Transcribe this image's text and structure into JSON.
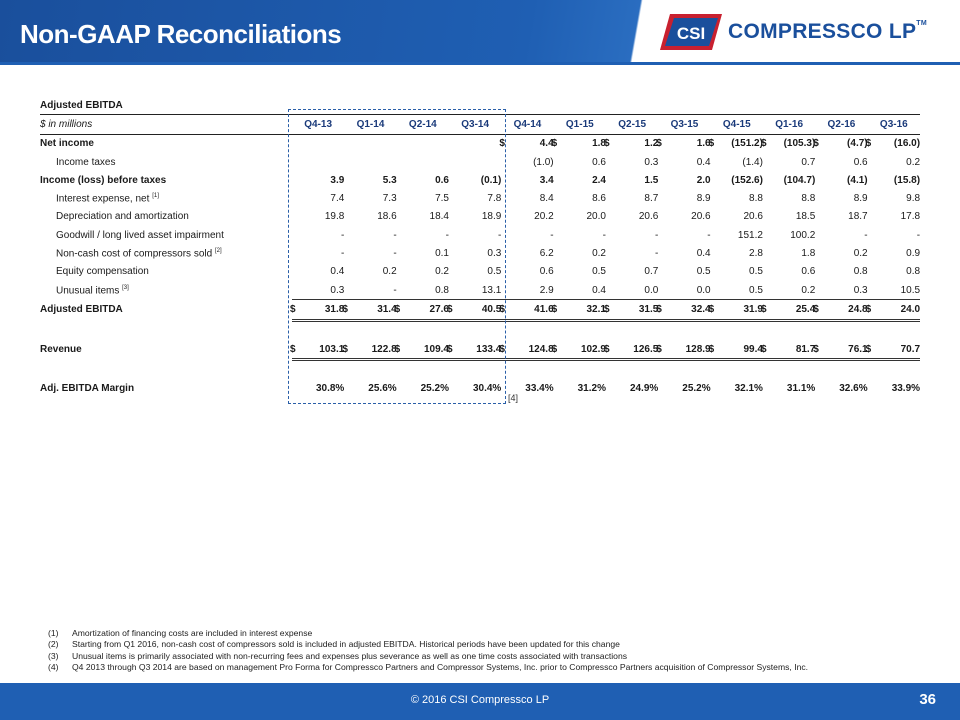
{
  "header": {
    "title": "Non-GAAP Reconciliations",
    "logo_badge": "CSI",
    "logo_text": "COMPRESSCO LP",
    "logo_tm": "TM",
    "colors": {
      "brand_blue": "#1f5fb3",
      "dark_blue": "#1a4f9c",
      "logo_red": "#c8202f"
    }
  },
  "table": {
    "section_title": "Adjusted EBITDA",
    "units_label": "$ in millions",
    "columns": [
      "Q4-13",
      "Q1-14",
      "Q2-14",
      "Q3-14",
      "Q4-14",
      "Q1-15",
      "Q2-15",
      "Q3-15",
      "Q4-15",
      "Q1-16",
      "Q2-16",
      "Q3-16"
    ],
    "rows": [
      {
        "label": "Net income",
        "sup": "",
        "bold": true,
        "indent": false,
        "dollar": true,
        "values": [
          "",
          "",
          "",
          "",
          "4.4",
          "1.8",
          "1.2",
          "1.6",
          "(151.2)",
          "(105.3)",
          "(4.7)",
          "(16.0)"
        ]
      },
      {
        "label": "Income taxes",
        "sup": "",
        "bold": false,
        "indent": true,
        "dollar": false,
        "values": [
          "",
          "",
          "",
          "",
          "(1.0)",
          "0.6",
          "0.3",
          "0.4",
          "(1.4)",
          "0.7",
          "0.6",
          "0.2"
        ]
      },
      {
        "label": "Income (loss) before taxes",
        "sup": "",
        "bold": true,
        "indent": false,
        "dollar": false,
        "values": [
          "3.9",
          "5.3",
          "0.6",
          "(0.1)",
          "3.4",
          "2.4",
          "1.5",
          "2.0",
          "(152.6)",
          "(104.7)",
          "(4.1)",
          "(15.8)"
        ]
      },
      {
        "label": "Interest expense, net",
        "sup": "[1]",
        "bold": false,
        "indent": true,
        "dollar": false,
        "values": [
          "7.4",
          "7.3",
          "7.5",
          "7.8",
          "8.4",
          "8.6",
          "8.7",
          "8.9",
          "8.8",
          "8.8",
          "8.9",
          "9.8"
        ]
      },
      {
        "label": "Depreciation and amortization",
        "sup": "",
        "bold": false,
        "indent": true,
        "dollar": false,
        "values": [
          "19.8",
          "18.6",
          "18.4",
          "18.9",
          "20.2",
          "20.0",
          "20.6",
          "20.6",
          "20.6",
          "18.5",
          "18.7",
          "17.8"
        ]
      },
      {
        "label": "Goodwill / long lived asset impairment",
        "sup": "",
        "bold": false,
        "indent": true,
        "dollar": false,
        "values": [
          "-",
          "-",
          "-",
          "-",
          "-",
          "-",
          "-",
          "-",
          "151.2",
          "100.2",
          "-",
          "-"
        ]
      },
      {
        "label": "Non-cash cost of compressors sold",
        "sup": "[2]",
        "bold": false,
        "indent": true,
        "dollar": false,
        "values": [
          "-",
          "-",
          "0.1",
          "0.3",
          "6.2",
          "0.2",
          "-",
          "0.4",
          "2.8",
          "1.8",
          "0.2",
          "0.9"
        ]
      },
      {
        "label": "Equity compensation",
        "sup": "",
        "bold": false,
        "indent": true,
        "dollar": false,
        "values": [
          "0.4",
          "0.2",
          "0.2",
          "0.5",
          "0.6",
          "0.5",
          "0.7",
          "0.5",
          "0.5",
          "0.6",
          "0.8",
          "0.8"
        ]
      },
      {
        "label": "Unusual items",
        "sup": "[3]",
        "bold": false,
        "indent": true,
        "dollar": false,
        "values": [
          "0.3",
          "-",
          "0.8",
          "13.1",
          "2.9",
          "0.4",
          "0.0",
          "0.0",
          "0.5",
          "0.2",
          "0.3",
          "10.5"
        ]
      },
      {
        "label": "Adjusted EBITDA",
        "sup": "",
        "bold": true,
        "indent": false,
        "dollar": true,
        "values": [
          "31.8",
          "31.4",
          "27.6",
          "40.5",
          "41.6",
          "32.1",
          "31.5",
          "32.4",
          "31.9",
          "25.4",
          "24.8",
          "24.0"
        ]
      },
      {
        "label": "Revenue",
        "sup": "",
        "bold": true,
        "indent": false,
        "dollar": true,
        "values": [
          "103.1",
          "122.8",
          "109.4",
          "133.4",
          "124.8",
          "102.9",
          "126.5",
          "128.9",
          "99.4",
          "81.7",
          "76.1",
          "70.7"
        ]
      },
      {
        "label": "Adj. EBITDA Margin",
        "sup": "",
        "bold": true,
        "indent": false,
        "dollar": false,
        "values": [
          "30.8%",
          "25.6%",
          "25.2%",
          "30.4%",
          "33.4%",
          "31.2%",
          "24.9%",
          "25.2%",
          "32.1%",
          "31.1%",
          "32.6%",
          "33.9%"
        ]
      }
    ],
    "currency_symbol": "$",
    "box_note": "[4]"
  },
  "footnotes": [
    {
      "num": "(1)",
      "text": "Amortization of financing costs are included in interest expense"
    },
    {
      "num": "(2)",
      "text": "Starting from Q1 2016, non-cash cost of compressors sold is included in adjusted EBITDA. Historical periods have been updated for this change"
    },
    {
      "num": "(3)",
      "text": "Unusual items is primarily associated with non-recurring fees and expenses plus severance as well as one time costs associated with transactions"
    },
    {
      "num": "(4)",
      "text": "Q4 2013 through Q3 2014 are based on management Pro Forma for Compressco Partners and Compressor Systems, Inc. prior to Compressco Partners acquisition of Compressor Systems, Inc."
    }
  ],
  "footer": {
    "copyright": "© 2016 CSI Compressco LP",
    "page_number": "36"
  }
}
